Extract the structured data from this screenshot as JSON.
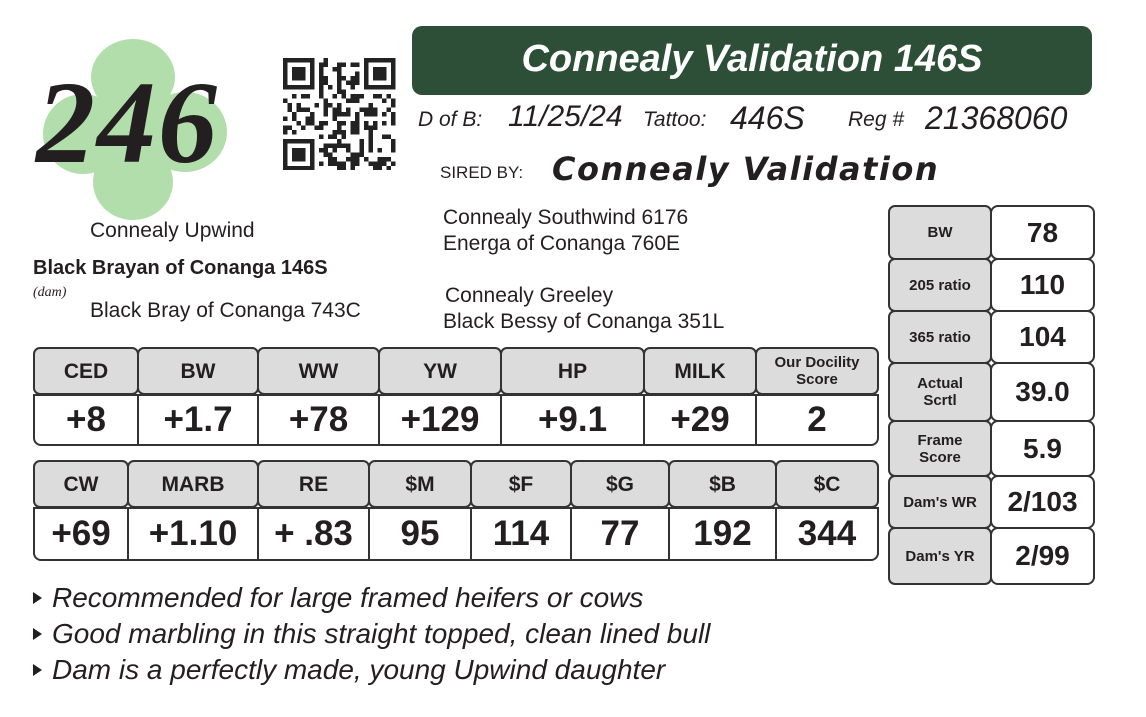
{
  "lot_number": "246",
  "title": "Connealy Validation 146S",
  "info": {
    "dob_label": "D of B:",
    "dob": "11/25/24",
    "tattoo_label": "Tattoo:",
    "tattoo": "446S",
    "reg_label": "Reg #",
    "reg": "21368060"
  },
  "sire": {
    "label": "SIRED BY:",
    "name": "Connealy Validation"
  },
  "pedigree": {
    "dam_sire": "Connealy Upwind",
    "dam": "Black Brayan of Conanga 146S",
    "dam_label": "(dam)",
    "dam_dam": "Black Bray of Conanga 743C",
    "sire_line_1": "Connealy Southwind 6176",
    "sire_line_2": "Energa of Conanga 760E",
    "sire_line_3": "Connealy Greeley",
    "sire_line_4": "Black Bessy of Conanga 351L"
  },
  "epd_table_1": {
    "headers": [
      "CED",
      "BW",
      "WW",
      "YW",
      "HP",
      "MILK",
      "Our Docility Score"
    ],
    "values": [
      "+8",
      "+1.7",
      "+78",
      "+129",
      "+9.1",
      "+29",
      "2"
    ]
  },
  "epd_table_2": {
    "headers": [
      "CW",
      "MARB",
      "RE",
      "$M",
      "$F",
      "$G",
      "$B",
      "$C"
    ],
    "values": [
      "+69",
      "+1.10",
      "+ .83",
      "95",
      "114",
      "77",
      "192",
      "344"
    ]
  },
  "performance": {
    "rows": [
      [
        "BW",
        "78"
      ],
      [
        "205 ratio",
        "110"
      ],
      [
        "365 ratio",
        "104"
      ],
      [
        "Actual Scrtl",
        "39.0"
      ],
      [
        "Frame Score",
        "5.9"
      ],
      [
        "Dam's WR",
        "2/103"
      ],
      [
        "Dam's YR",
        "2/99"
      ]
    ]
  },
  "notes": [
    "Recommended for large framed heifers or cows",
    "Good marbling in this straight topped, clean lined bull",
    "Dam is a perfectly made, young Upwind daughter"
  ]
}
